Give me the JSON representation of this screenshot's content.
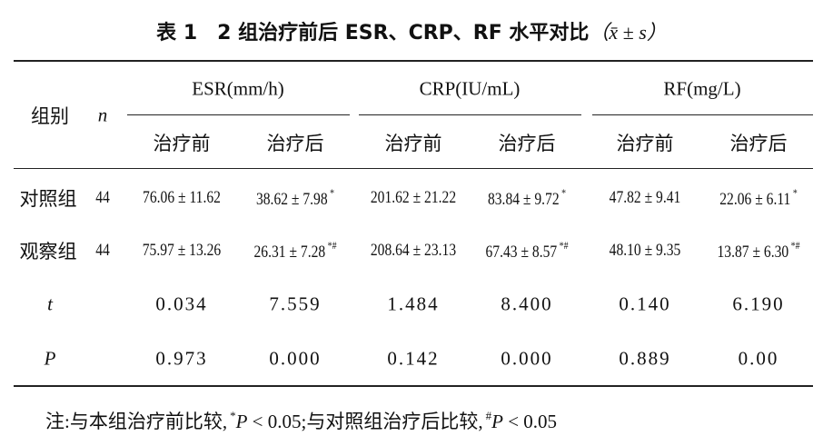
{
  "title_label": "表 1",
  "title_text": "2 组治疗前后 ESR、CRP、RF 水平对比",
  "title_stat": "（x̄ ± s）",
  "header": {
    "group": "组别",
    "n": "n",
    "measures": [
      "ESR(mm/h)",
      "CRP(IU/mL)",
      "RF(mg/L)"
    ],
    "subheaders": [
      "治疗前",
      "治疗后",
      "治疗前",
      "治疗后",
      "治疗前",
      "治疗后"
    ]
  },
  "rows": [
    {
      "label": "对照组",
      "n": "44",
      "cells": [
        {
          "text": "76.06 ± 11.62"
        },
        {
          "text": "38.62 ± 7.98",
          "sup": "*"
        },
        {
          "text": "201.62 ± 21.22"
        },
        {
          "text": "83.84 ± 9.72",
          "sup": "*"
        },
        {
          "text": "47.82 ± 9.41"
        },
        {
          "text": "22.06 ± 6.11",
          "sup": "*"
        }
      ]
    },
    {
      "label": "观察组",
      "n": "44",
      "cells": [
        {
          "text": "75.97 ± 13.26"
        },
        {
          "text": "26.31 ± 7.28",
          "sup": "*#"
        },
        {
          "text": "208.64 ± 23.13"
        },
        {
          "text": "67.43 ± 8.57",
          "sup": "*#"
        },
        {
          "text": "48.10 ± 9.35"
        },
        {
          "text": "13.87 ± 6.30",
          "sup": "*#"
        }
      ]
    },
    {
      "label": "t",
      "cells": [
        {
          "text": "0.034"
        },
        {
          "text": "7.559"
        },
        {
          "text": "1.484"
        },
        {
          "text": "8.400"
        },
        {
          "text": "0.140"
        },
        {
          "text": "6.190"
        }
      ]
    },
    {
      "label": "P",
      "cells": [
        {
          "text": "0.973"
        },
        {
          "text": "0.000"
        },
        {
          "text": "0.142"
        },
        {
          "text": "0.000"
        },
        {
          "text": "0.889"
        },
        {
          "text": "0.00"
        }
      ]
    }
  ],
  "note": [
    "注:与本组治疗前比较,",
    "*",
    "P",
    " < 0.05;与对照组治疗后比较,",
    "#",
    "P",
    " < 0.05"
  ]
}
